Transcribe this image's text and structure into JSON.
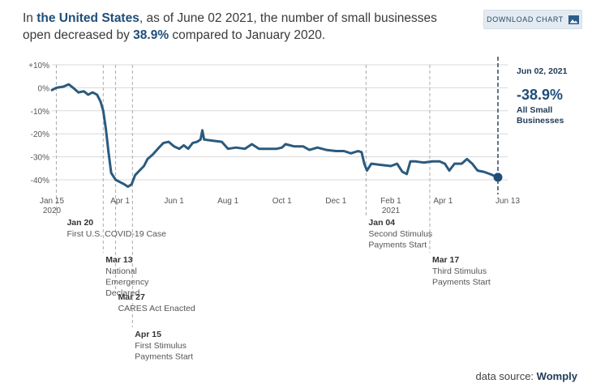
{
  "headline": {
    "prefix": "In ",
    "place": "the United States",
    "mid": ", as of June 02 2021, the number of small businesses open decreased by ",
    "change": "38.9%",
    "suffix": " compared to January 2020."
  },
  "download": {
    "label": "DOWNLOAD CHART",
    "icon": "image-icon"
  },
  "source": {
    "label": "data source:",
    "name": "Womply"
  },
  "colors": {
    "line": "#2b5a7e",
    "grid": "#d9d9d9",
    "event": "#aaaaaa",
    "accent": "#1f4e79"
  },
  "chart_data": {
    "type": "line",
    "title": "",
    "xlabel": "",
    "ylabel": "",
    "ylim": [
      -45,
      10
    ],
    "yticks": [
      {
        "value": 10,
        "label": "+10%"
      },
      {
        "value": 0,
        "label": "0%"
      },
      {
        "value": -10,
        "label": "-10%"
      },
      {
        "value": -20,
        "label": "-20%"
      },
      {
        "value": -30,
        "label": "-30%"
      },
      {
        "value": -40,
        "label": "-40%"
      }
    ],
    "xlim": [
      "2020-01-15",
      "2021-06-13"
    ],
    "xticks": [
      {
        "date": "2020-01-15",
        "label": "Jan 15",
        "sublabel": "2020"
      },
      {
        "date": "2020-04-01",
        "label": "Apr 1"
      },
      {
        "date": "2020-06-01",
        "label": "Jun 1"
      },
      {
        "date": "2020-08-01",
        "label": "Aug 1"
      },
      {
        "date": "2020-10-01",
        "label": "Oct 1"
      },
      {
        "date": "2020-12-01",
        "label": "Dec 1"
      },
      {
        "date": "2021-02-01",
        "label": "Feb 1",
        "sublabel": "2021"
      },
      {
        "date": "2021-04-01",
        "label": "Apr 1"
      },
      {
        "date": "2021-06-13",
        "label": "Jun 13"
      }
    ],
    "series": [
      {
        "name": "All Small Businesses",
        "points": [
          [
            "2020-01-15",
            -1
          ],
          [
            "2020-01-20",
            0
          ],
          [
            "2020-01-28",
            0.5
          ],
          [
            "2020-02-03",
            1.5
          ],
          [
            "2020-02-08",
            0
          ],
          [
            "2020-02-14",
            -2
          ],
          [
            "2020-02-20",
            -1.5
          ],
          [
            "2020-02-25",
            -3
          ],
          [
            "2020-03-01",
            -2
          ],
          [
            "2020-03-06",
            -3
          ],
          [
            "2020-03-10",
            -6
          ],
          [
            "2020-03-13",
            -10
          ],
          [
            "2020-03-16",
            -18
          ],
          [
            "2020-03-19",
            -28
          ],
          [
            "2020-03-22",
            -37
          ],
          [
            "2020-03-27",
            -40
          ],
          [
            "2020-04-01",
            -41
          ],
          [
            "2020-04-06",
            -42
          ],
          [
            "2020-04-10",
            -43
          ],
          [
            "2020-04-14",
            -42
          ],
          [
            "2020-04-18",
            -38
          ],
          [
            "2020-04-23",
            -36
          ],
          [
            "2020-04-28",
            -34
          ],
          [
            "2020-05-02",
            -31
          ],
          [
            "2020-05-08",
            -29
          ],
          [
            "2020-05-15",
            -26
          ],
          [
            "2020-05-20",
            -24
          ],
          [
            "2020-05-26",
            -23.5
          ],
          [
            "2020-06-01",
            -25.5
          ],
          [
            "2020-06-07",
            -26.5
          ],
          [
            "2020-06-12",
            -25
          ],
          [
            "2020-06-17",
            -26.5
          ],
          [
            "2020-06-22",
            -24
          ],
          [
            "2020-06-27",
            -23.5
          ],
          [
            "2020-07-01",
            -22.5
          ],
          [
            "2020-07-03",
            -18.5
          ],
          [
            "2020-07-05",
            -22.5
          ],
          [
            "2020-07-15",
            -23
          ],
          [
            "2020-07-25",
            -23.5
          ],
          [
            "2020-08-01",
            -26.5
          ],
          [
            "2020-08-10",
            -26
          ],
          [
            "2020-08-20",
            -26.5
          ],
          [
            "2020-08-28",
            -24.5
          ],
          [
            "2020-09-05",
            -26.5
          ],
          [
            "2020-09-15",
            -26.5
          ],
          [
            "2020-09-25",
            -26.5
          ],
          [
            "2020-10-01",
            -26
          ],
          [
            "2020-10-05",
            -24.5
          ],
          [
            "2020-10-15",
            -25.5
          ],
          [
            "2020-10-25",
            -25.5
          ],
          [
            "2020-11-01",
            -27
          ],
          [
            "2020-11-10",
            -26
          ],
          [
            "2020-11-20",
            -27
          ],
          [
            "2020-12-01",
            -27.5
          ],
          [
            "2020-12-10",
            -27.5
          ],
          [
            "2020-12-18",
            -28.5
          ],
          [
            "2020-12-26",
            -27.5
          ],
          [
            "2020-12-30",
            -28
          ],
          [
            "2021-01-02",
            -33
          ],
          [
            "2021-01-05",
            -36
          ],
          [
            "2021-01-10",
            -33
          ],
          [
            "2021-01-20",
            -33.5
          ],
          [
            "2021-02-01",
            -34
          ],
          [
            "2021-02-08",
            -33
          ],
          [
            "2021-02-14",
            -36.5
          ],
          [
            "2021-02-19",
            -37.5
          ],
          [
            "2021-02-23",
            -32
          ],
          [
            "2021-03-01",
            -32
          ],
          [
            "2021-03-10",
            -32.5
          ],
          [
            "2021-03-20",
            -32
          ],
          [
            "2021-03-28",
            -32
          ],
          [
            "2021-04-03",
            -33
          ],
          [
            "2021-04-08",
            -36
          ],
          [
            "2021-04-14",
            -33
          ],
          [
            "2021-04-22",
            -33
          ],
          [
            "2021-04-28",
            -31
          ],
          [
            "2021-05-04",
            -33
          ],
          [
            "2021-05-10",
            -36
          ],
          [
            "2021-05-17",
            -36.5
          ],
          [
            "2021-05-24",
            -37.5
          ],
          [
            "2021-06-02",
            -38.9
          ]
        ]
      }
    ],
    "endpoint": {
      "date": "Jun 02, 2021",
      "value": "-38.9%",
      "label": "All Small Businesses"
    },
    "events": [
      {
        "date": "2020-01-20",
        "title": "Jan 20",
        "text": "First U.S. COVID-19 Case"
      },
      {
        "date": "2020-03-13",
        "title": "Mar 13",
        "text": "National Emergency Declared"
      },
      {
        "date": "2020-03-27",
        "title": "Mar 27",
        "text": "CARES Act Enacted"
      },
      {
        "date": "2020-04-15",
        "title": "Apr 15",
        "text": "First Stimulus Payments Start"
      },
      {
        "date": "2021-01-04",
        "title": "Jan 04",
        "text": "Second Stimulus Payments Start"
      },
      {
        "date": "2021-03-17",
        "title": "Mar 17",
        "text": "Third Stimulus Payments Start"
      }
    ]
  }
}
